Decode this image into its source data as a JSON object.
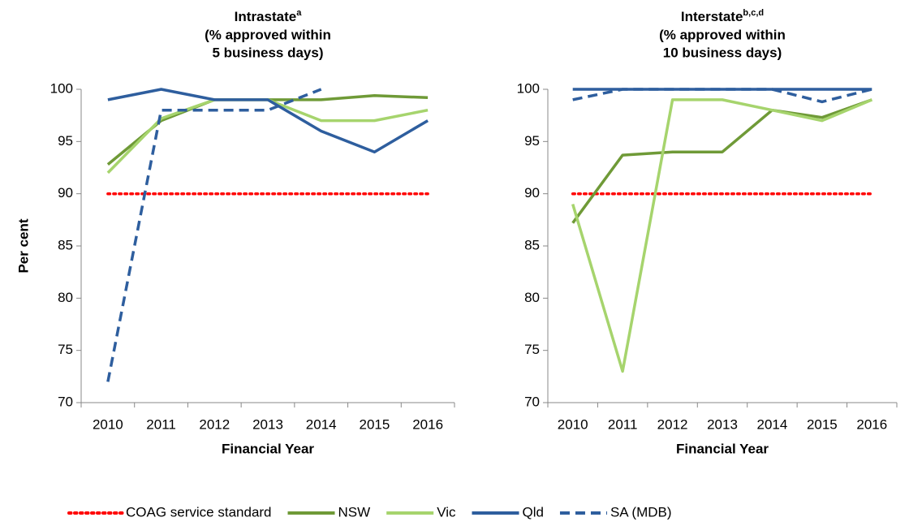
{
  "chart_data": [
    {
      "type": "line",
      "title": "Intrastate",
      "title_note": "a",
      "subtitle": [
        "(% approved within",
        "5 business days)"
      ],
      "y_label": "Per cent",
      "x_label": "Financial Year",
      "categories": [
        "2010",
        "2011",
        "2012",
        "2013",
        "2014",
        "2015",
        "2016"
      ],
      "ylim": [
        70,
        100
      ],
      "yticks": [
        70,
        75,
        80,
        85,
        90,
        95,
        100
      ],
      "grid": false,
      "series": [
        {
          "name": "COAG service standard",
          "color": "#ff0000",
          "dash": "dotted",
          "values": [
            90,
            90,
            90,
            90,
            90,
            90,
            90
          ]
        },
        {
          "name": "NSW",
          "color": "#6f9a37",
          "dash": "solid",
          "values": [
            92.8,
            97,
            99,
            99,
            99,
            99.4,
            99.2
          ]
        },
        {
          "name": "Vic",
          "color": "#a6d46d",
          "dash": "solid",
          "values": [
            92,
            97.2,
            99,
            99,
            97,
            97,
            98
          ]
        },
        {
          "name": "Qld",
          "color": "#2e5e9e",
          "dash": "solid",
          "values": [
            99,
            100,
            99,
            99,
            96,
            94,
            97
          ]
        },
        {
          "name": "SA (MDB)",
          "color": "#2e5e9e",
          "dash": "dashed",
          "values": [
            72,
            98,
            98,
            98,
            100,
            null,
            null
          ]
        }
      ]
    },
    {
      "type": "line",
      "title": "Interstate",
      "title_note": "b,c,d",
      "subtitle": [
        "(% approved within",
        "10 business days)"
      ],
      "x_label": "Financial Year",
      "categories": [
        "2010",
        "2011",
        "2012",
        "2013",
        "2014",
        "2015",
        "2016"
      ],
      "ylim": [
        70,
        100
      ],
      "yticks": [
        70,
        75,
        80,
        85,
        90,
        95,
        100
      ],
      "grid": false,
      "series": [
        {
          "name": "COAG service standard",
          "color": "#ff0000",
          "dash": "dotted",
          "values": [
            90,
            90,
            90,
            90,
            90,
            90,
            90
          ]
        },
        {
          "name": "NSW",
          "color": "#6f9a37",
          "dash": "solid",
          "values": [
            87.2,
            93.7,
            94,
            94,
            98,
            97.3,
            99
          ]
        },
        {
          "name": "Vic",
          "color": "#a6d46d",
          "dash": "solid",
          "values": [
            89,
            73,
            99,
            99,
            98,
            97,
            99
          ]
        },
        {
          "name": "Qld",
          "color": "#2e5e9e",
          "dash": "solid",
          "values": [
            100,
            100,
            100,
            100,
            100,
            100,
            100
          ]
        },
        {
          "name": "SA (MDB)",
          "color": "#2e5e9e",
          "dash": "dashed",
          "values": [
            99,
            100,
            100,
            100,
            100,
            98.8,
            100
          ]
        }
      ]
    }
  ]
}
